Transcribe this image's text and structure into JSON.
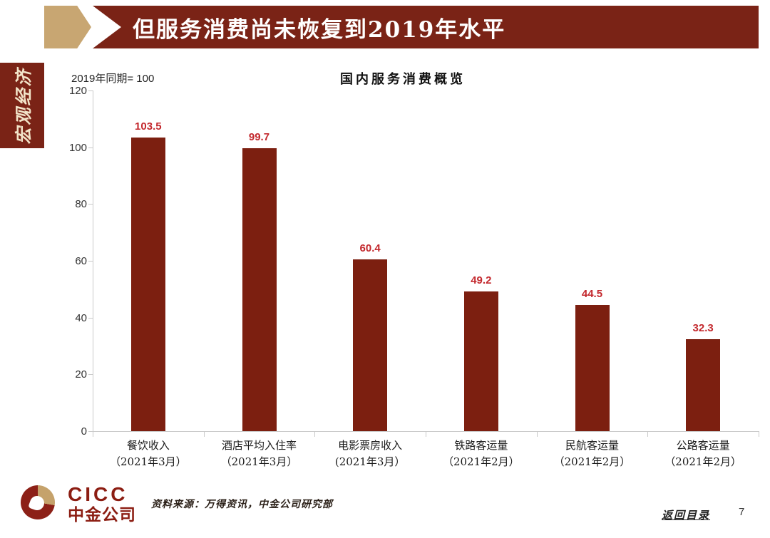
{
  "slide": {
    "header": {
      "title": "但服务消费尚未恢复到2019年水平"
    },
    "sidebar": {
      "label": "宏观经济"
    },
    "footer": {
      "logo_en": "CICC",
      "logo_cn": "中金公司",
      "source": "资料来源：万得资讯，中金公司研究部",
      "back_link": "返回目录",
      "page_number": "7"
    }
  },
  "chart_data": {
    "type": "bar",
    "title": "国内服务消费概览",
    "axis_note": "2019年同期= 100",
    "categories": [
      {
        "name": "餐饮收入",
        "period": "（2021年3月）"
      },
      {
        "name": "酒店平均入住率",
        "period": "（2021年3月）"
      },
      {
        "name": "电影票房收入",
        "period": "(2021年3月）"
      },
      {
        "name": "铁路客运量",
        "period": "（2021年2月）"
      },
      {
        "name": "民航客运量",
        "period": "（2021年2月）"
      },
      {
        "name": "公路客运量",
        "period": "（2021年2月）"
      }
    ],
    "values": [
      103.5,
      99.7,
      60.4,
      49.2,
      44.5,
      32.3
    ],
    "ylim": [
      0,
      120
    ],
    "yticks": [
      0,
      20,
      40,
      60,
      80,
      100,
      120
    ],
    "grid": false,
    "legend": "none",
    "value_labels": true,
    "bar_color": "#7c1f10",
    "value_label_color": "#c3282d",
    "axis_color": "#c9c9c9"
  }
}
